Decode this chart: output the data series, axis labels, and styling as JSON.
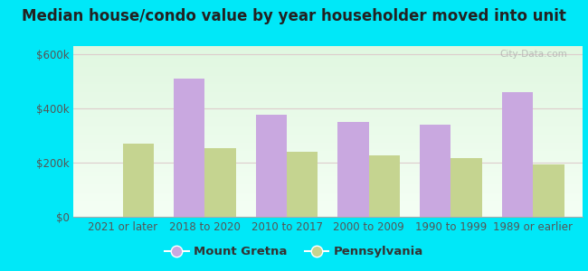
{
  "title": "Median house/condo value by year householder moved into unit",
  "categories": [
    "2021 or later",
    "2018 to 2020",
    "2010 to 2017",
    "2000 to 2009",
    "1990 to 1999",
    "1989 or earlier"
  ],
  "mount_gretna": [
    0,
    510000,
    375000,
    350000,
    340000,
    460000
  ],
  "pennsylvania": [
    270000,
    255000,
    240000,
    228000,
    218000,
    195000
  ],
  "bar_color_mg": "#c9a8e0",
  "bar_color_pa": "#c5d490",
  "background_outer": "#00e8f8",
  "ylabel_ticks": [
    "$0",
    "$200k",
    "$400k",
    "$600k"
  ],
  "ytick_vals": [
    0,
    200000,
    400000,
    600000
  ],
  "ylim": [
    0,
    630000
  ],
  "legend_mg": "Mount Gretna",
  "legend_pa": "Pennsylvania",
  "watermark": "City-Data.com",
  "title_fontsize": 12,
  "tick_fontsize": 8.5,
  "bar_width": 0.38
}
